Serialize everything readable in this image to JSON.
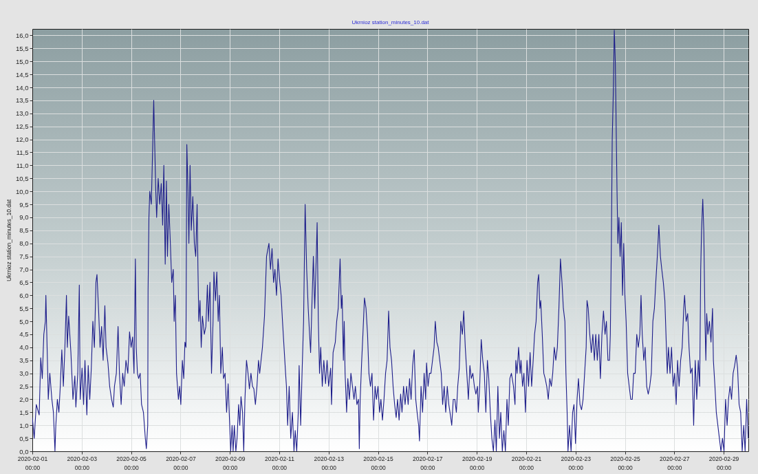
{
  "chart_data": {
    "type": "line",
    "title": "Ukrnioz station_minutes_10.dat",
    "ylabel": "Ukrnioz station_minutes_10.dat",
    "x": [
      "2020-02-01T00:00",
      "2020-02-01T01:50",
      "2020-02-01T03:50",
      "2020-02-01T06:40",
      "2020-02-01T08:10",
      "2020-02-01T09:40",
      "2020-02-01T11:10",
      "2020-02-01T12:40",
      "2020-02-01T13:10",
      "2020-02-01T14:40",
      "2020-02-01T15:30",
      "2020-02-01T17:00",
      "2020-02-01T19:00",
      "2020-02-01T20:30",
      "2020-02-01T22:00",
      "2020-02-01T22:50",
      "2020-02-02T00:20",
      "2020-02-02T01:50",
      "2020-02-02T03:10",
      "2020-02-02T04:40",
      "2020-02-02T06:10",
      "2020-02-02T07:40",
      "2020-02-02T09:10",
      "2020-02-02T10:00",
      "2020-02-02T11:20",
      "2020-02-02T13:30",
      "2020-02-02T15:30",
      "2020-02-02T17:20",
      "2020-02-02T18:20",
      "2020-02-02T20:10",
      "2020-02-02T21:40",
      "2020-02-02T22:30",
      "2020-02-03T00:20",
      "2020-02-03T01:50",
      "2020-02-03T03:10",
      "2020-02-03T05:00",
      "2020-02-03T06:20",
      "2020-02-03T07:50",
      "2020-02-03T09:20",
      "2020-02-03T10:50",
      "2020-02-03T12:20",
      "2020-02-03T13:50",
      "2020-02-03T14:50",
      "2020-02-03T16:20",
      "2020-02-03T17:50",
      "2020-02-03T19:20",
      "2020-02-03T20:50",
      "2020-02-03T22:30",
      "2020-02-03T23:40",
      "2020-02-04T01:30",
      "2020-02-04T03:10",
      "2020-02-04T05:00",
      "2020-02-04T06:40",
      "2020-02-04T07:50",
      "2020-02-04T09:40",
      "2020-02-04T11:20",
      "2020-02-04T12:40",
      "2020-02-04T14:20",
      "2020-02-04T15:50",
      "2020-02-04T17:20",
      "2020-02-04T19:00",
      "2020-02-04T20:50",
      "2020-02-04T22:30",
      "2020-02-05T00:00",
      "2020-02-05T01:30",
      "2020-02-05T02:50",
      "2020-02-05T04:10",
      "2020-02-05T05:00",
      "2020-02-05T06:10",
      "2020-02-05T07:20",
      "2020-02-05T08:50",
      "2020-02-05T10:10",
      "2020-02-05T12:00",
      "2020-02-05T13:50",
      "2020-02-05T14:50",
      "2020-02-05T16:10",
      "2020-02-05T16:30",
      "2020-02-05T17:20",
      "2020-02-05T18:10",
      "2020-02-05T19:40",
      "2020-02-05T21:10",
      "2020-02-05T22:00",
      "2020-02-05T22:50",
      "2020-02-06T00:00",
      "2020-02-06T00:50",
      "2020-02-06T02:20",
      "2020-02-06T03:50",
      "2020-02-06T05:20",
      "2020-02-06T06:40",
      "2020-02-06T07:50",
      "2020-02-06T09:10",
      "2020-02-06T10:20",
      "2020-02-06T11:20",
      "2020-02-06T12:40",
      "2020-02-06T14:10",
      "2020-02-06T15:30",
      "2020-02-06T17:00",
      "2020-02-06T17:50",
      "2020-02-06T19:00",
      "2020-02-06T20:10",
      "2020-02-06T22:00",
      "2020-02-06T23:10",
      "2020-02-07T00:20",
      "2020-02-07T01:50",
      "2020-02-07T03:10",
      "2020-02-07T04:20",
      "2020-02-07T05:20",
      "2020-02-07T06:10",
      "2020-02-07T07:20",
      "2020-02-07T08:10",
      "2020-02-07T09:20",
      "2020-02-07T10:30",
      "2020-02-07T12:00",
      "2020-02-07T13:30",
      "2020-02-07T14:50",
      "2020-02-07T16:10",
      "2020-02-07T17:00",
      "2020-02-07T17:50",
      "2020-02-07T19:00",
      "2020-02-07T20:10",
      "2020-02-07T21:20",
      "2020-02-07T23:10",
      "2020-02-08T00:40",
      "2020-02-08T02:10",
      "2020-02-08T03:10",
      "2020-02-08T04:40",
      "2020-02-08T06:10",
      "2020-02-08T07:40",
      "2020-02-08T08:30",
      "2020-02-08T10:00",
      "2020-02-08T11:20",
      "2020-02-08T12:40",
      "2020-02-08T13:50",
      "2020-02-08T15:10",
      "2020-02-08T16:40",
      "2020-02-08T17:50",
      "2020-02-08T19:20",
      "2020-02-08T20:50",
      "2020-02-08T22:20",
      "2020-02-08T23:40",
      "2020-02-09T00:50",
      "2020-02-09T02:10",
      "2020-02-09T03:10",
      "2020-02-09T04:20",
      "2020-02-09T05:50",
      "2020-02-09T07:00",
      "2020-02-09T08:30",
      "2020-02-09T09:40",
      "2020-02-09T10:50",
      "2020-02-09T12:20",
      "2020-02-09T13:30",
      "2020-02-09T14:40",
      "2020-02-09T16:10",
      "2020-02-09T17:40",
      "2020-02-09T19:00",
      "2020-02-09T20:30",
      "2020-02-09T22:00",
      "2020-02-09T23:20",
      "2020-02-10T00:50",
      "2020-02-10T02:20",
      "2020-02-10T03:50",
      "2020-02-10T05:00",
      "2020-02-10T07:40",
      "2020-02-10T09:40",
      "2020-02-10T11:40",
      "2020-02-10T14:00",
      "2020-02-10T15:30",
      "2020-02-10T17:00",
      "2020-02-10T18:30",
      "2020-02-10T19:50",
      "2020-02-10T21:20",
      "2020-02-10T22:50",
      "2020-02-11T00:20",
      "2020-02-11T01:50",
      "2020-02-11T03:10",
      "2020-02-11T04:40",
      "2020-02-11T06:10",
      "2020-02-11T07:00",
      "2020-02-11T08:10",
      "2020-02-11T09:40",
      "2020-02-11T11:10",
      "2020-02-11T12:50",
      "2020-02-11T14:20",
      "2020-02-11T15:30",
      "2020-02-11T17:00",
      "2020-02-11T18:30",
      "2020-02-11T19:20",
      "2020-02-11T20:50",
      "2020-02-11T22:10",
      "2020-02-11T23:40",
      "2020-02-12T01:10",
      "2020-02-12T02:40",
      "2020-02-12T04:10",
      "2020-02-12T05:30",
      "2020-02-12T06:30",
      "2020-02-12T07:40",
      "2020-02-12T09:10",
      "2020-02-12T10:30",
      "2020-02-12T12:00",
      "2020-02-12T12:50",
      "2020-02-12T14:00",
      "2020-02-12T15:10",
      "2020-02-12T16:20",
      "2020-02-12T17:50",
      "2020-02-12T19:20",
      "2020-02-12T21:00",
      "2020-02-12T22:30",
      "2020-02-13T00:00",
      "2020-02-13T02:00",
      "2020-02-13T02:50",
      "2020-02-13T04:20",
      "2020-02-13T06:30",
      "2020-02-13T07:50",
      "2020-02-13T09:20",
      "2020-02-13T11:10",
      "2020-02-13T12:20",
      "2020-02-13T13:10",
      "2020-02-13T14:20",
      "2020-02-13T15:10",
      "2020-02-13T16:00",
      "2020-02-13T17:30",
      "2020-02-13T18:40",
      "2020-02-13T20:10",
      "2020-02-13T21:40",
      "2020-02-13T23:10",
      "2020-02-14T00:40",
      "2020-02-14T02:00",
      "2020-02-14T03:30",
      "2020-02-14T05:00",
      "2020-02-14T05:50",
      "2020-02-14T06:40",
      "2020-02-14T08:10",
      "2020-02-14T09:20",
      "2020-02-14T10:50",
      "2020-02-14T12:20",
      "2020-02-14T13:50",
      "2020-02-14T15:10",
      "2020-02-14T16:40",
      "2020-02-14T18:10",
      "2020-02-14T19:40",
      "2020-02-14T21:10",
      "2020-02-14T22:30",
      "2020-02-15T00:00",
      "2020-02-15T01:30",
      "2020-02-15T02:50",
      "2020-02-15T04:20",
      "2020-02-15T05:50",
      "2020-02-15T07:20",
      "2020-02-15T08:50",
      "2020-02-15T10:20",
      "2020-02-15T11:40",
      "2020-02-15T13:10",
      "2020-02-15T14:40",
      "2020-02-15T16:10",
      "2020-02-15T17:40",
      "2020-02-15T19:00",
      "2020-02-15T20:30",
      "2020-02-15T22:00",
      "2020-02-15T23:20",
      "2020-02-16T00:50",
      "2020-02-16T02:20",
      "2020-02-16T03:50",
      "2020-02-16T05:20",
      "2020-02-16T06:40",
      "2020-02-16T08:10",
      "2020-02-16T09:40",
      "2020-02-16T11:10",
      "2020-02-16T12:40",
      "2020-02-16T14:00",
      "2020-02-16T15:30",
      "2020-02-16T16:20",
      "2020-02-16T17:50",
      "2020-02-16T19:20",
      "2020-02-16T20:50",
      "2020-02-16T22:20",
      "2020-02-16T23:10",
      "2020-02-17T00:40",
      "2020-02-17T02:00",
      "2020-02-17T03:30",
      "2020-02-17T05:00",
      "2020-02-17T06:30",
      "2020-02-17T07:40",
      "2020-02-17T09:10",
      "2020-02-17T10:30",
      "2020-02-17T12:00",
      "2020-02-17T13:30",
      "2020-02-17T14:50",
      "2020-02-17T16:20",
      "2020-02-17T17:50",
      "2020-02-17T19:20",
      "2020-02-17T20:50",
      "2020-02-17T22:20",
      "2020-02-17T23:40",
      "2020-02-18T01:10",
      "2020-02-18T02:40",
      "2020-02-18T04:10",
      "2020-02-18T05:30",
      "2020-02-18T07:00",
      "2020-02-18T08:30",
      "2020-02-18T10:00",
      "2020-02-18T11:20",
      "2020-02-18T12:50",
      "2020-02-18T14:20",
      "2020-02-18T15:50",
      "2020-02-18T17:20",
      "2020-02-18T18:40",
      "2020-02-18T20:10",
      "2020-02-18T21:40",
      "2020-02-18T23:10",
      "2020-02-19T00:40",
      "2020-02-19T01:30",
      "2020-02-19T02:50",
      "2020-02-19T04:20",
      "2020-02-19T05:50",
      "2020-02-19T07:20",
      "2020-02-19T08:50",
      "2020-02-19T10:20",
      "2020-02-19T11:40",
      "2020-02-19T13:10",
      "2020-02-19T14:40",
      "2020-02-19T16:10",
      "2020-02-19T17:40",
      "2020-02-19T19:00",
      "2020-02-19T20:30",
      "2020-02-19T22:00",
      "2020-02-19T23:20",
      "2020-02-20T00:50",
      "2020-02-20T02:20",
      "2020-02-20T03:50",
      "2020-02-20T05:20",
      "2020-02-20T06:40",
      "2020-02-20T08:10",
      "2020-02-20T09:40",
      "2020-02-20T11:40",
      "2020-02-20T13:10",
      "2020-02-20T14:00",
      "2020-02-20T15:10",
      "2020-02-20T16:40",
      "2020-02-20T18:10",
      "2020-02-20T19:00",
      "2020-02-20T20:30",
      "2020-02-20T21:50",
      "2020-02-20T23:20",
      "2020-02-21T00:50",
      "2020-02-21T02:20",
      "2020-02-21T03:50",
      "2020-02-21T05:20",
      "2020-02-21T06:50",
      "2020-02-21T08:10",
      "2020-02-21T09:40",
      "2020-02-21T11:10",
      "2020-02-21T12:10",
      "2020-02-21T13:20",
      "2020-02-21T14:10",
      "2020-02-21T15:40",
      "2020-02-21T17:10",
      "2020-02-21T18:30",
      "2020-02-21T20:00",
      "2020-02-21T21:30",
      "2020-02-21T23:00",
      "2020-02-22T00:30",
      "2020-02-22T01:50",
      "2020-02-22T03:20",
      "2020-02-22T04:50",
      "2020-02-22T06:20",
      "2020-02-22T07:50",
      "2020-02-22T09:20",
      "2020-02-22T10:50",
      "2020-02-22T12:10",
      "2020-02-22T13:40",
      "2020-02-22T14:40",
      "2020-02-22T15:50",
      "2020-02-22T16:40",
      "2020-02-22T18:10",
      "2020-02-22T19:40",
      "2020-02-22T21:10",
      "2020-02-22T22:30",
      "2020-02-23T00:00",
      "2020-02-23T01:30",
      "2020-02-23T02:50",
      "2020-02-23T04:20",
      "2020-02-23T05:50",
      "2020-02-23T07:20",
      "2020-02-23T08:50",
      "2020-02-23T10:20",
      "2020-02-23T11:10",
      "2020-02-23T12:20",
      "2020-02-23T13:50",
      "2020-02-23T15:20",
      "2020-02-23T16:50",
      "2020-02-23T18:20",
      "2020-02-23T19:40",
      "2020-02-23T21:10",
      "2020-02-23T22:40",
      "2020-02-24T00:10",
      "2020-02-24T01:40",
      "2020-02-24T03:10",
      "2020-02-24T04:40",
      "2020-02-24T06:00",
      "2020-02-24T07:30",
      "2020-02-24T09:00",
      "2020-02-24T09:50",
      "2020-02-24T10:50",
      "2020-02-24T11:40",
      "2020-02-24T12:50",
      "2020-02-24T13:40",
      "2020-02-24T14:40",
      "2020-02-24T15:30",
      "2020-02-24T16:20",
      "2020-02-24T17:10",
      "2020-02-24T18:10",
      "2020-02-24T19:20",
      "2020-02-24T20:30",
      "2020-02-24T21:40",
      "2020-02-24T22:50",
      "2020-02-25T00:00",
      "2020-02-25T01:10",
      "2020-02-25T02:40",
      "2020-02-25T04:10",
      "2020-02-25T05:40",
      "2020-02-25T07:10",
      "2020-02-25T08:30",
      "2020-02-25T10:00",
      "2020-02-25T11:30",
      "2020-02-25T13:00",
      "2020-02-25T14:30",
      "2020-02-25T15:40",
      "2020-02-25T16:50",
      "2020-02-25T18:20",
      "2020-02-25T19:40",
      "2020-02-25T21:10",
      "2020-02-25T22:40",
      "2020-02-26T00:10",
      "2020-02-26T01:40",
      "2020-02-26T03:10",
      "2020-02-26T04:40",
      "2020-02-26T06:00",
      "2020-02-26T07:30",
      "2020-02-26T09:00",
      "2020-02-26T10:30",
      "2020-02-26T11:50",
      "2020-02-26T13:20",
      "2020-02-26T14:50",
      "2020-02-26T16:20",
      "2020-02-26T17:10",
      "2020-02-26T18:20",
      "2020-02-26T19:50",
      "2020-02-26T21:20",
      "2020-02-26T22:50",
      "2020-02-27T00:20",
      "2020-02-27T01:50",
      "2020-02-27T03:10",
      "2020-02-27T04:40",
      "2020-02-27T06:10",
      "2020-02-27T07:40",
      "2020-02-27T09:10",
      "2020-02-27T10:00",
      "2020-02-27T11:30",
      "2020-02-27T13:00",
      "2020-02-27T14:20",
      "2020-02-27T15:50",
      "2020-02-27T17:20",
      "2020-02-27T18:50",
      "2020-02-27T20:20",
      "2020-02-27T21:50",
      "2020-02-27T23:20",
      "2020-02-28T00:40",
      "2020-02-28T01:40",
      "2020-02-28T02:30",
      "2020-02-28T03:40",
      "2020-02-28T04:40",
      "2020-02-28T05:50",
      "2020-02-28T06:40",
      "2020-02-28T07:30",
      "2020-02-28T08:40",
      "2020-02-28T10:10",
      "2020-02-28T11:40",
      "2020-02-28T13:10",
      "2020-02-28T14:00",
      "2020-02-28T15:30",
      "2020-02-28T16:50",
      "2020-02-28T18:20",
      "2020-02-28T19:50",
      "2020-02-28T21:20",
      "2020-02-28T22:50",
      "2020-02-29T00:20",
      "2020-02-29T01:50",
      "2020-02-29T03:20",
      "2020-02-29T04:40",
      "2020-02-29T06:10",
      "2020-02-29T07:40",
      "2020-02-29T09:10",
      "2020-02-29T10:40",
      "2020-02-29T12:10",
      "2020-02-29T13:30",
      "2020-02-29T15:00",
      "2020-02-29T16:30",
      "2020-02-29T18:00",
      "2020-02-29T19:30",
      "2020-02-29T20:50",
      "2020-02-29T22:20",
      "2020-02-29T23:50"
    ],
    "series": [
      {
        "color": "#1c1c8a",
        "values": [
          1.3,
          0.5,
          1.8,
          1.4,
          3.6,
          2.8,
          4.5,
          5.0,
          6.0,
          3.5,
          2.0,
          3.0,
          2.0,
          1.5,
          0.0,
          1.0,
          2.0,
          1.5,
          2.5,
          3.9,
          2.5,
          4.0,
          6.0,
          4.0,
          5.2,
          3.8,
          2.0,
          2.9,
          1.7,
          3.0,
          6.4,
          2.0,
          3.2,
          1.8,
          3.5,
          1.4,
          3.3,
          2.0,
          3.2,
          5.0,
          4.0,
          6.5,
          6.8,
          5.5,
          4.0,
          4.8,
          3.5,
          5.6,
          4.0,
          3.4,
          2.5,
          2.0,
          1.7,
          2.5,
          3.0,
          4.8,
          3.0,
          1.8,
          3.0,
          2.5,
          3.5,
          3.0,
          4.6,
          4.0,
          4.4,
          3.0,
          7.4,
          4.0,
          3.0,
          2.8,
          3.0,
          1.8,
          1.5,
          0.5,
          0.1,
          1.0,
          6.2,
          9.0,
          10.0,
          9.5,
          12.0,
          13.5,
          12.0,
          10.0,
          9.0,
          10.5,
          9.5,
          10.3,
          8.7,
          11.0,
          7.2,
          10.4,
          7.5,
          9.5,
          8.0,
          6.5,
          7.0,
          5.0,
          6.0,
          3.0,
          2.0,
          2.5,
          1.8,
          3.5,
          2.8,
          4.2,
          4.0,
          11.8,
          10.0,
          8.0,
          11.0,
          8.5,
          9.8,
          8.0,
          7.5,
          9.5,
          7.0,
          5.0,
          5.8,
          4.0,
          5.2,
          4.5,
          4.8,
          6.4,
          5.0,
          6.5,
          3.0,
          5.0,
          6.9,
          5.8,
          6.9,
          5.0,
          6.0,
          3.0,
          4.0,
          2.8,
          3.0,
          1.5,
          2.6,
          1.2,
          0.0,
          1.0,
          0.0,
          1.0,
          0.0,
          0.5,
          1.8,
          1.0,
          2.1,
          1.5,
          0.0,
          2.0,
          3.5,
          3.0,
          2.4,
          3.0,
          2.5,
          2.4,
          1.8,
          2.5,
          3.5,
          3.0,
          4.0,
          5.2,
          7.5,
          8.0,
          7.0,
          7.8,
          6.5,
          7.0,
          6.0,
          7.4,
          6.6,
          6.0,
          5.0,
          4.0,
          3.0,
          2.5,
          1.0,
          2.5,
          0.5,
          1.5,
          0.0,
          0.8,
          0.0,
          1.5,
          3.3,
          1.0,
          3.0,
          5.0,
          9.5,
          7.0,
          5.5,
          4.5,
          3.8,
          5.5,
          7.5,
          5.5,
          7.5,
          8.8,
          5.0,
          3.0,
          4.0,
          2.5,
          3.5,
          2.6,
          3.5,
          2.5,
          3.2,
          1.8,
          3.8,
          4.2,
          5.0,
          5.5,
          7.4,
          5.5,
          6.0,
          3.5,
          5.0,
          3.0,
          1.5,
          2.8,
          2.0,
          3.0,
          2.5,
          2.0,
          2.5,
          1.8,
          2.0,
          0.1,
          2.0,
          3.5,
          4.5,
          5.9,
          5.5,
          4.5,
          3.0,
          2.5,
          3.0,
          1.2,
          2.5,
          2.0,
          2.5,
          1.5,
          2.0,
          1.2,
          2.0,
          3.0,
          3.5,
          5.4,
          4.0,
          3.5,
          2.5,
          1.8,
          1.3,
          2.0,
          1.2,
          2.2,
          1.5,
          2.5,
          1.8,
          2.5,
          1.8,
          2.8,
          2.0,
          3.3,
          3.9,
          2.0,
          1.5,
          1.0,
          0.4,
          2.5,
          1.5,
          3.0,
          2.0,
          3.4,
          2.5,
          3.0,
          3.0,
          3.5,
          4.0,
          5.0,
          4.2,
          4.0,
          3.5,
          3.0,
          1.8,
          2.5,
          1.5,
          2.5,
          1.8,
          1.4,
          1.0,
          2.0,
          2.0,
          1.5,
          2.5,
          3.2,
          5.0,
          4.5,
          5.4,
          4.0,
          3.0,
          2.0,
          3.3,
          2.8,
          3.0,
          2.5,
          2.2,
          2.5,
          1.5,
          2.5,
          4.3,
          3.5,
          3.0,
          1.5,
          3.5,
          2.8,
          1.5,
          0.5,
          0.0,
          1.2,
          0.0,
          2.5,
          0.5,
          1.5,
          0.0,
          0.8,
          0.0,
          2.0,
          1.0,
          2.8,
          3.0,
          2.5,
          1.8,
          3.5,
          3.0,
          4.0,
          3.0,
          3.5,
          2.5,
          3.0,
          1.5,
          3.5,
          2.5,
          3.8,
          2.5,
          3.5,
          4.5,
          5.0,
          6.5,
          6.8,
          5.5,
          5.8,
          4.5,
          3.0,
          2.8,
          2.5,
          2.0,
          2.8,
          2.5,
          3.0,
          4.0,
          3.5,
          4.0,
          5.5,
          7.4,
          6.5,
          5.5,
          5.0,
          3.0,
          1.5,
          0.0,
          1.0,
          0.0,
          1.5,
          1.8,
          0.3,
          2.0,
          2.8,
          1.8,
          1.6,
          2.0,
          3.0,
          4.0,
          5.8,
          5.5,
          4.5,
          3.8,
          4.5,
          3.5,
          4.5,
          3.5,
          4.5,
          2.8,
          4.5,
          5.4,
          4.5,
          5.0,
          3.5,
          3.5,
          4.5,
          8.0,
          12.0,
          14.0,
          16.2,
          15.0,
          12.5,
          10.0,
          8.0,
          9.0,
          7.5,
          8.8,
          6.0,
          8.0,
          6.0,
          5.0,
          3.0,
          2.5,
          2.0,
          2.0,
          3.0,
          3.0,
          4.5,
          4.0,
          4.5,
          6.0,
          4.5,
          3.5,
          4.0,
          2.5,
          2.2,
          2.5,
          3.0,
          5.0,
          5.5,
          6.5,
          7.5,
          8.7,
          7.5,
          7.0,
          6.5,
          5.8,
          4.0,
          3.0,
          4.0,
          3.0,
          4.0,
          2.5,
          3.0,
          1.8,
          3.5,
          2.5,
          3.5,
          4.0,
          5.5,
          6.0,
          5.0,
          5.3,
          4.0,
          3.0,
          3.2,
          1.0,
          3.5,
          2.0,
          3.5,
          2.5,
          7.0,
          8.5,
          9.7,
          8.5,
          5.0,
          3.5,
          5.3,
          4.5,
          5.0,
          4.2,
          5.5,
          3.5,
          2.5,
          1.5,
          1.0,
          0.5,
          0.0,
          0.5,
          0.0,
          2.0,
          1.0,
          2.0,
          2.5,
          2.0,
          3.0,
          3.3,
          3.7,
          3.2,
          1.8,
          1.5,
          0.0,
          1.0,
          0.0,
          2.0,
          0.5
        ]
      }
    ],
    "xlim": [
      "2020-02-01T00:00",
      "2020-03-01T00:00"
    ],
    "ylim": [
      0,
      16.25
    ],
    "xticks": [
      {
        "value": "2020-02-01T00:00",
        "label": "2020-02-01 00:00"
      },
      {
        "value": "2020-02-03T00:00",
        "label": "2020-02-03 00:00"
      },
      {
        "value": "2020-02-05T00:00",
        "label": "2020-02-05 00:00"
      },
      {
        "value": "2020-02-07T00:00",
        "label": "2020-02-07 00:00"
      },
      {
        "value": "2020-02-09T00:00",
        "label": "2020-02-09 00:00"
      },
      {
        "value": "2020-02-11T00:00",
        "label": "2020-02-11 00:00"
      },
      {
        "value": "2020-02-13T00:00",
        "label": "2020-02-13 00:00"
      },
      {
        "value": "2020-02-15T00:00",
        "label": "2020-02-15 00:00"
      },
      {
        "value": "2020-02-17T00:00",
        "label": "2020-02-17 00:00"
      },
      {
        "value": "2020-02-19T00:00",
        "label": "2020-02-19 00:00"
      },
      {
        "value": "2020-02-21T00:00",
        "label": "2020-02-21 00:00"
      },
      {
        "value": "2020-02-23T00:00",
        "label": "2020-02-23 00:00"
      },
      {
        "value": "2020-02-25T00:00",
        "label": "2020-02-25 00:00"
      },
      {
        "value": "2020-02-27T00:00",
        "label": "2020-02-27 00:00"
      },
      {
        "value": "2020-02-29T00:00",
        "label": "2020-02-29 00:00"
      }
    ],
    "yticks": [
      {
        "value": 0,
        "label": "0,0"
      },
      {
        "value": 0.5,
        "label": "0,5"
      },
      {
        "value": 1,
        "label": "1,0"
      },
      {
        "value": 1.5,
        "label": "1,5"
      },
      {
        "value": 2,
        "label": "2,0"
      },
      {
        "value": 2.5,
        "label": "2,5"
      },
      {
        "value": 3,
        "label": "3,0"
      },
      {
        "value": 3.5,
        "label": "3,5"
      },
      {
        "value": 4,
        "label": "4,0"
      },
      {
        "value": 4.5,
        "label": "4,5"
      },
      {
        "value": 5,
        "label": "5,0"
      },
      {
        "value": 5.5,
        "label": "5,5"
      },
      {
        "value": 6,
        "label": "6,0"
      },
      {
        "value": 6.5,
        "label": "6,5"
      },
      {
        "value": 7,
        "label": "7,0"
      },
      {
        "value": 7.5,
        "label": "7,5"
      },
      {
        "value": 8,
        "label": "8,0"
      },
      {
        "value": 8.5,
        "label": "8,5"
      },
      {
        "value": 9,
        "label": "9,0"
      },
      {
        "value": 9.5,
        "label": "9,5"
      },
      {
        "value": 10,
        "label": "10,0"
      },
      {
        "value": 10.5,
        "label": "10,5"
      },
      {
        "value": 11,
        "label": "11,0"
      },
      {
        "value": 11.5,
        "label": "11,5"
      },
      {
        "value": 12,
        "label": "12,0"
      },
      {
        "value": 12.5,
        "label": "12,5"
      },
      {
        "value": 13,
        "label": "13,0"
      },
      {
        "value": 13.5,
        "label": "13,5"
      },
      {
        "value": 14,
        "label": "14,0"
      },
      {
        "value": 14.5,
        "label": "14,5"
      },
      {
        "value": 15,
        "label": "15,0"
      },
      {
        "value": 15.5,
        "label": "15,5"
      },
      {
        "value": 16,
        "label": "16,0"
      }
    ],
    "grid": true,
    "line_style": "solid"
  }
}
